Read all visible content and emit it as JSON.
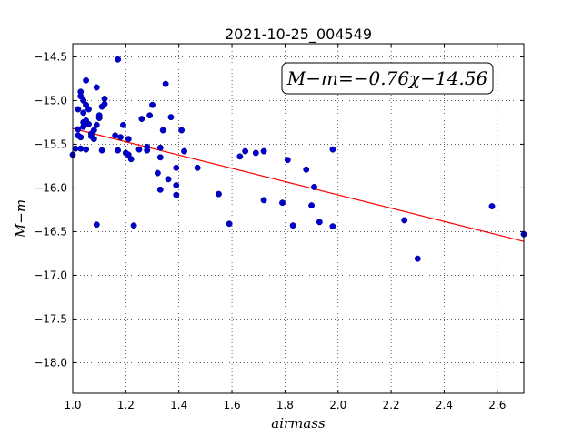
{
  "chart_data": {
    "type": "scatter",
    "title": "2021-10-25_004549",
    "xlabel": "airmass",
    "ylabel": "M−m",
    "xlim": [
      1.0,
      2.7
    ],
    "ylim": [
      -18.35,
      -14.35
    ],
    "y_inverted": true,
    "grid": true,
    "x_ticks": [
      "1.0",
      "1.2",
      "1.4",
      "1.6",
      "1.8",
      "2.0",
      "2.2",
      "2.4",
      "2.6"
    ],
    "x_tick_values": [
      1.0,
      1.2,
      1.4,
      1.6,
      1.8,
      2.0,
      2.2,
      2.4,
      2.6
    ],
    "y_ticks": [
      "−14.5",
      "−15.0",
      "−15.5",
      "−16.0",
      "−16.5",
      "−17.0",
      "−17.5",
      "−18.0"
    ],
    "y_tick_values": [
      -14.5,
      -15.0,
      -15.5,
      -16.0,
      -16.5,
      -17.0,
      -17.5,
      -18.0
    ],
    "fit": {
      "slope": -0.76,
      "intercept": -14.56,
      "color": "#ff0000"
    },
    "annotation": "M−m=−0.76χ−14.56",
    "point_color": "#0000cc",
    "points": [
      [
        1.0,
        -15.62
      ],
      [
        1.01,
        -15.55
      ],
      [
        1.02,
        -15.4
      ],
      [
        1.02,
        -15.1
      ],
      [
        1.02,
        -15.33
      ],
      [
        1.03,
        -15.42
      ],
      [
        1.03,
        -14.9
      ],
      [
        1.03,
        -14.95
      ],
      [
        1.03,
        -15.55
      ],
      [
        1.04,
        -15.0
      ],
      [
        1.04,
        -15.14
      ],
      [
        1.04,
        -15.25
      ],
      [
        1.04,
        -15.3
      ],
      [
        1.05,
        -15.23
      ],
      [
        1.05,
        -15.56
      ],
      [
        1.05,
        -15.05
      ],
      [
        1.05,
        -14.77
      ],
      [
        1.06,
        -15.1
      ],
      [
        1.06,
        -15.27
      ],
      [
        1.07,
        -15.38
      ],
      [
        1.07,
        -15.41
      ],
      [
        1.08,
        -15.44
      ],
      [
        1.08,
        -15.34
      ],
      [
        1.09,
        -14.85
      ],
      [
        1.09,
        -16.42
      ],
      [
        1.09,
        -15.28
      ],
      [
        1.1,
        -15.2
      ],
      [
        1.1,
        -15.17
      ],
      [
        1.11,
        -15.07
      ],
      [
        1.11,
        -15.57
      ],
      [
        1.12,
        -14.98
      ],
      [
        1.12,
        -15.04
      ],
      [
        1.16,
        -15.4
      ],
      [
        1.17,
        -14.53
      ],
      [
        1.17,
        -15.57
      ],
      [
        1.18,
        -15.42
      ],
      [
        1.19,
        -15.28
      ],
      [
        1.2,
        -15.6
      ],
      [
        1.21,
        -15.62
      ],
      [
        1.21,
        -15.44
      ],
      [
        1.22,
        -15.67
      ],
      [
        1.23,
        -16.43
      ],
      [
        1.25,
        -15.56
      ],
      [
        1.26,
        -15.21
      ],
      [
        1.28,
        -15.53
      ],
      [
        1.28,
        -15.57
      ],
      [
        1.29,
        -15.17
      ],
      [
        1.3,
        -15.05
      ],
      [
        1.32,
        -15.83
      ],
      [
        1.33,
        -16.02
      ],
      [
        1.33,
        -15.54
      ],
      [
        1.33,
        -15.65
      ],
      [
        1.34,
        -15.34
      ],
      [
        1.35,
        -14.81
      ],
      [
        1.36,
        -15.9
      ],
      [
        1.37,
        -15.19
      ],
      [
        1.39,
        -15.97
      ],
      [
        1.39,
        -16.08
      ],
      [
        1.39,
        -15.77
      ],
      [
        1.41,
        -15.34
      ],
      [
        1.42,
        -15.58
      ],
      [
        1.47,
        -15.77
      ],
      [
        1.55,
        -16.07
      ],
      [
        1.59,
        -16.41
      ],
      [
        1.63,
        -15.64
      ],
      [
        1.65,
        -15.58
      ],
      [
        1.69,
        -15.6
      ],
      [
        1.72,
        -15.58
      ],
      [
        1.72,
        -16.14
      ],
      [
        1.79,
        -16.17
      ],
      [
        1.81,
        -15.68
      ],
      [
        1.83,
        -16.43
      ],
      [
        1.88,
        -15.79
      ],
      [
        1.9,
        -16.2
      ],
      [
        1.91,
        -15.99
      ],
      [
        1.93,
        -16.39
      ],
      [
        1.98,
        -15.56
      ],
      [
        1.98,
        -16.44
      ],
      [
        2.25,
        -16.37
      ],
      [
        2.3,
        -16.81
      ],
      [
        2.58,
        -16.21
      ],
      [
        2.7,
        -16.53
      ]
    ]
  }
}
